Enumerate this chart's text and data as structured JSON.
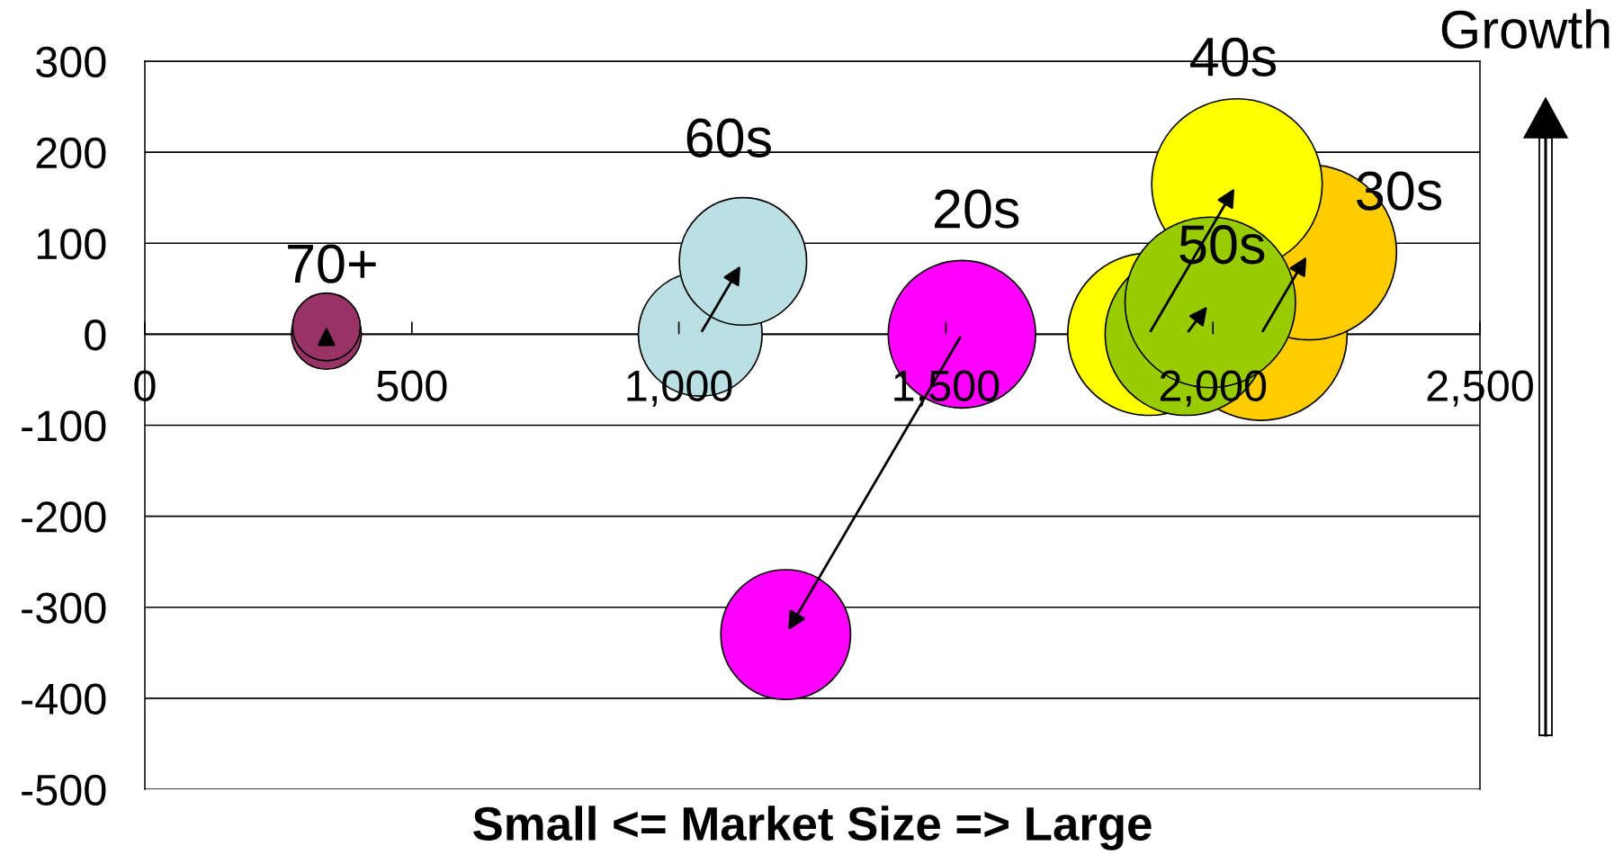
{
  "chart_data": {
    "type": "bubble",
    "xlabel": "Small <= Market Size => Large",
    "ylabel": "Growth",
    "xlim": [
      0,
      2500
    ],
    "xticks": [
      0,
      500,
      {
        "value": 1000,
        "label": "1,000"
      },
      {
        "value": 1500,
        "label": "1,500"
      },
      {
        "value": 2000,
        "label": "2,000"
      },
      {
        "value": 2500,
        "label": "2,500"
      }
    ],
    "ylim": [
      -500,
      300
    ],
    "yticks": [
      -500,
      -400,
      -300,
      -200,
      -100,
      0,
      100,
      200,
      300
    ],
    "grid": "y",
    "series": [
      {
        "name": "20s",
        "color": "#ff00ff",
        "x": [
          1530,
          1200
        ],
        "values": [
          0,
          -330
        ],
        "sizes": [
          0.71,
          0.55
        ]
      },
      {
        "name": "30s",
        "color": "#ffcc00",
        "x": [
          2090,
          2180
        ],
        "values": [
          0,
          90
        ],
        "sizes": [
          0.97,
          1
        ]
      },
      {
        "name": "40s",
        "color": "#ffff00",
        "x": [
          1880,
          2045
        ],
        "values": [
          0,
          165
        ],
        "sizes": [
          0.86,
          0.95
        ]
      },
      {
        "name": "50s",
        "color": "#99cc00",
        "x": [
          1950,
          1995
        ],
        "values": [
          0,
          35
        ],
        "sizes": [
          0.86,
          0.95
        ]
      },
      {
        "name": "60s",
        "color": "#bbe0e3",
        "x": [
          1040,
          1120
        ],
        "values": [
          0,
          80
        ],
        "sizes": [
          0.5,
          0.53
        ]
      },
      {
        "name": "70+",
        "color": "#993366",
        "x": [
          340,
          340
        ],
        "values": [
          0,
          8
        ],
        "sizes": [
          0.16,
          0.15
        ]
      }
    ]
  }
}
